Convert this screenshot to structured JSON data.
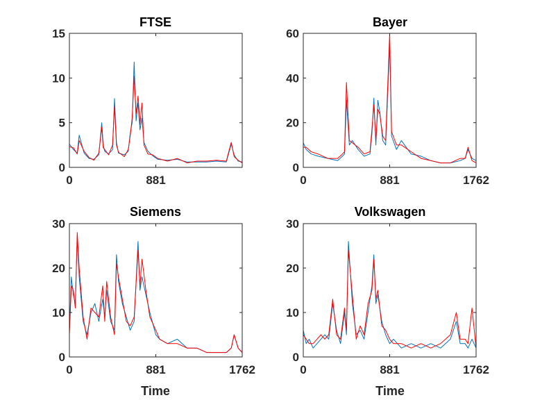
{
  "chart_data": [
    {
      "type": "line",
      "title": "FTSE",
      "xlabel": "",
      "ylabel": "",
      "xlim": [
        0,
        1762
      ],
      "ylim": [
        0,
        15
      ],
      "xticks": [
        0,
        881
      ],
      "xtick_labels": [
        "0",
        "881"
      ],
      "yticks": [
        0,
        5,
        10,
        15
      ],
      "ytick_labels": [
        "0",
        "5",
        "10",
        "15"
      ],
      "grid": false,
      "series": [
        {
          "color": "#0072BD",
          "x": [
            0,
            40,
            80,
            100,
            150,
            200,
            250,
            300,
            330,
            345,
            360,
            400,
            440,
            460,
            480,
            500,
            560,
            600,
            620,
            640,
            660,
            680,
            700,
            720,
            740,
            760,
            800,
            850,
            900,
            1000,
            1100,
            1200,
            1300,
            1400,
            1500,
            1600,
            1650,
            1680,
            1720,
            1762
          ],
          "values": [
            2.6,
            2.0,
            1.6,
            3.6,
            1.6,
            1.0,
            0.9,
            1.4,
            5.0,
            2.5,
            1.8,
            1.5,
            2.0,
            7.7,
            2.8,
            1.6,
            1.4,
            1.8,
            3.8,
            5.0,
            11.8,
            5.2,
            7.2,
            4.2,
            5.5,
            2.8,
            1.8,
            1.3,
            0.9,
            0.8,
            0.9,
            0.6,
            0.6,
            0.6,
            0.7,
            0.6,
            2.6,
            1.4,
            0.7,
            0.6
          ]
        },
        {
          "color": "#FF0000",
          "x": [
            0,
            40,
            80,
            100,
            150,
            200,
            250,
            300,
            330,
            345,
            360,
            400,
            440,
            460,
            480,
            500,
            560,
            600,
            620,
            640,
            660,
            680,
            700,
            720,
            740,
            760,
            800,
            850,
            900,
            1000,
            1100,
            1200,
            1300,
            1400,
            1500,
            1600,
            1650,
            1680,
            1720,
            1762
          ],
          "values": [
            2.3,
            2.2,
            1.5,
            3.0,
            1.8,
            1.1,
            0.8,
            1.6,
            4.5,
            2.2,
            2.0,
            1.4,
            2.5,
            6.8,
            2.5,
            1.7,
            1.2,
            2.0,
            3.5,
            5.5,
            10.2,
            6.0,
            8.0,
            4.8,
            7.2,
            2.5,
            1.5,
            1.4,
            1.0,
            0.7,
            1.0,
            0.5,
            0.7,
            0.7,
            0.8,
            0.7,
            2.8,
            1.2,
            0.8,
            0.5
          ]
        }
      ]
    },
    {
      "type": "line",
      "title": "Bayer",
      "xlabel": "",
      "ylabel": "",
      "xlim": [
        0,
        1762
      ],
      "ylim": [
        0,
        60
      ],
      "xticks": [
        0,
        881,
        1762
      ],
      "xtick_labels": [
        "0",
        "881",
        "1762"
      ],
      "yticks": [
        0,
        20,
        40,
        60
      ],
      "ytick_labels": [
        "0",
        "20",
        "40",
        "60"
      ],
      "grid": false,
      "series": [
        {
          "color": "#0072BD",
          "x": [
            0,
            30,
            80,
            150,
            250,
            350,
            400,
            420,
            440,
            470,
            500,
            560,
            620,
            680,
            700,
            720,
            740,
            760,
            780,
            810,
            840,
            881,
            900,
            950,
            1000,
            1100,
            1200,
            1300,
            1400,
            1500,
            1600,
            1650,
            1680,
            1720,
            1762
          ],
          "values": [
            11,
            8,
            6,
            5,
            4,
            3,
            5,
            6,
            30,
            10,
            12,
            8,
            5,
            6,
            15,
            31,
            10,
            30,
            25,
            12,
            10,
            55,
            14,
            8,
            12,
            6,
            5,
            3,
            2,
            2,
            3,
            4,
            8,
            4,
            3
          ]
        },
        {
          "color": "#FF0000",
          "x": [
            0,
            30,
            80,
            150,
            250,
            350,
            400,
            420,
            440,
            470,
            500,
            560,
            620,
            680,
            700,
            720,
            740,
            760,
            780,
            810,
            840,
            881,
            900,
            950,
            1000,
            1100,
            1200,
            1300,
            1400,
            1500,
            1600,
            1650,
            1680,
            1720,
            1762
          ],
          "values": [
            9,
            9,
            7,
            6,
            4,
            4,
            6,
            7,
            38,
            12,
            11,
            9,
            6,
            7,
            17,
            28,
            12,
            26,
            24,
            14,
            12,
            60,
            16,
            10,
            10,
            7,
            4,
            3,
            2,
            2,
            4,
            4,
            9,
            3,
            2
          ]
        }
      ]
    },
    {
      "type": "line",
      "title": "Siemens",
      "xlabel": "Time",
      "ylabel": "",
      "xlim": [
        0,
        1762
      ],
      "ylim": [
        0,
        30
      ],
      "xticks": [
        0,
        881,
        1762
      ],
      "xtick_labels": [
        "0",
        "881",
        "1762"
      ],
      "yticks": [
        0,
        10,
        20,
        30
      ],
      "ytick_labels": [
        "0",
        "10",
        "20",
        "30"
      ],
      "grid": false,
      "series": [
        {
          "color": "#0072BD",
          "x": [
            0,
            20,
            40,
            60,
            80,
            100,
            140,
            180,
            220,
            260,
            300,
            340,
            360,
            380,
            420,
            460,
            480,
            500,
            540,
            580,
            620,
            660,
            700,
            720,
            740,
            780,
            820,
            881,
            920,
            1000,
            1100,
            1200,
            1300,
            1400,
            1500,
            1600,
            1650,
            1680,
            1720,
            1762
          ],
          "values": [
            6,
            18,
            14,
            12,
            27,
            18,
            8,
            5,
            10,
            12,
            8,
            13,
            9,
            15,
            8,
            6,
            23,
            17,
            12,
            9,
            6,
            8,
            26,
            15,
            18,
            14,
            10,
            5,
            4,
            3,
            4,
            2,
            2,
            1,
            1,
            1,
            2,
            5,
            2,
            1
          ]
        },
        {
          "color": "#FF0000",
          "x": [
            0,
            20,
            40,
            60,
            80,
            100,
            140,
            180,
            220,
            260,
            300,
            340,
            360,
            380,
            420,
            460,
            480,
            500,
            540,
            580,
            620,
            660,
            700,
            720,
            740,
            780,
            820,
            881,
            920,
            1000,
            1100,
            1200,
            1300,
            1400,
            1500,
            1600,
            1650,
            1680,
            1720,
            1762
          ],
          "values": [
            5,
            16,
            15,
            11,
            28,
            20,
            9,
            4,
            11,
            10,
            9,
            16,
            8,
            17,
            9,
            5,
            21,
            18,
            13,
            8,
            7,
            9,
            24,
            16,
            22,
            15,
            9,
            6,
            4,
            3,
            3,
            2,
            2,
            1,
            1,
            1,
            2,
            5,
            2,
            1
          ]
        }
      ]
    },
    {
      "type": "line",
      "title": "Volkswagen",
      "xlabel": "Time",
      "ylabel": "",
      "xlim": [
        0,
        1762
      ],
      "ylim": [
        0,
        30
      ],
      "xticks": [
        0,
        881,
        1762
      ],
      "xtick_labels": [
        "0",
        "881",
        "1762"
      ],
      "yticks": [
        0,
        10,
        20,
        30
      ],
      "ytick_labels": [
        "0",
        "10",
        "20",
        "30"
      ],
      "grid": false,
      "series": [
        {
          "color": "#0072BD",
          "x": [
            0,
            30,
            60,
            100,
            140,
            180,
            220,
            260,
            300,
            340,
            380,
            420,
            440,
            460,
            500,
            540,
            580,
            620,
            660,
            700,
            720,
            740,
            760,
            800,
            840,
            881,
            920,
            1000,
            1100,
            1200,
            1300,
            1400,
            1500,
            1560,
            1600,
            1650,
            1680,
            1720,
            1762
          ],
          "values": [
            6,
            3,
            4,
            2,
            3,
            4,
            5,
            4,
            12,
            6,
            3,
            10,
            5,
            26,
            12,
            5,
            6,
            4,
            10,
            16,
            23,
            12,
            14,
            8,
            5,
            3,
            4,
            2,
            3,
            2,
            3,
            2,
            4,
            8,
            3,
            3,
            2,
            4,
            2
          ]
        },
        {
          "color": "#FF0000",
          "x": [
            0,
            30,
            60,
            100,
            140,
            180,
            220,
            260,
            300,
            340,
            380,
            420,
            440,
            460,
            500,
            540,
            580,
            620,
            660,
            700,
            720,
            740,
            760,
            800,
            840,
            881,
            920,
            1000,
            1100,
            1200,
            1300,
            1400,
            1500,
            1560,
            1600,
            1650,
            1680,
            1720,
            1762
          ],
          "values": [
            5,
            4,
            3,
            3,
            4,
            5,
            4,
            5,
            13,
            5,
            4,
            11,
            6,
            24,
            14,
            4,
            7,
            5,
            12,
            15,
            22,
            13,
            15,
            7,
            6,
            4,
            3,
            3,
            2,
            3,
            2,
            3,
            5,
            10,
            4,
            4,
            3,
            11,
            2
          ]
        }
      ]
    }
  ]
}
